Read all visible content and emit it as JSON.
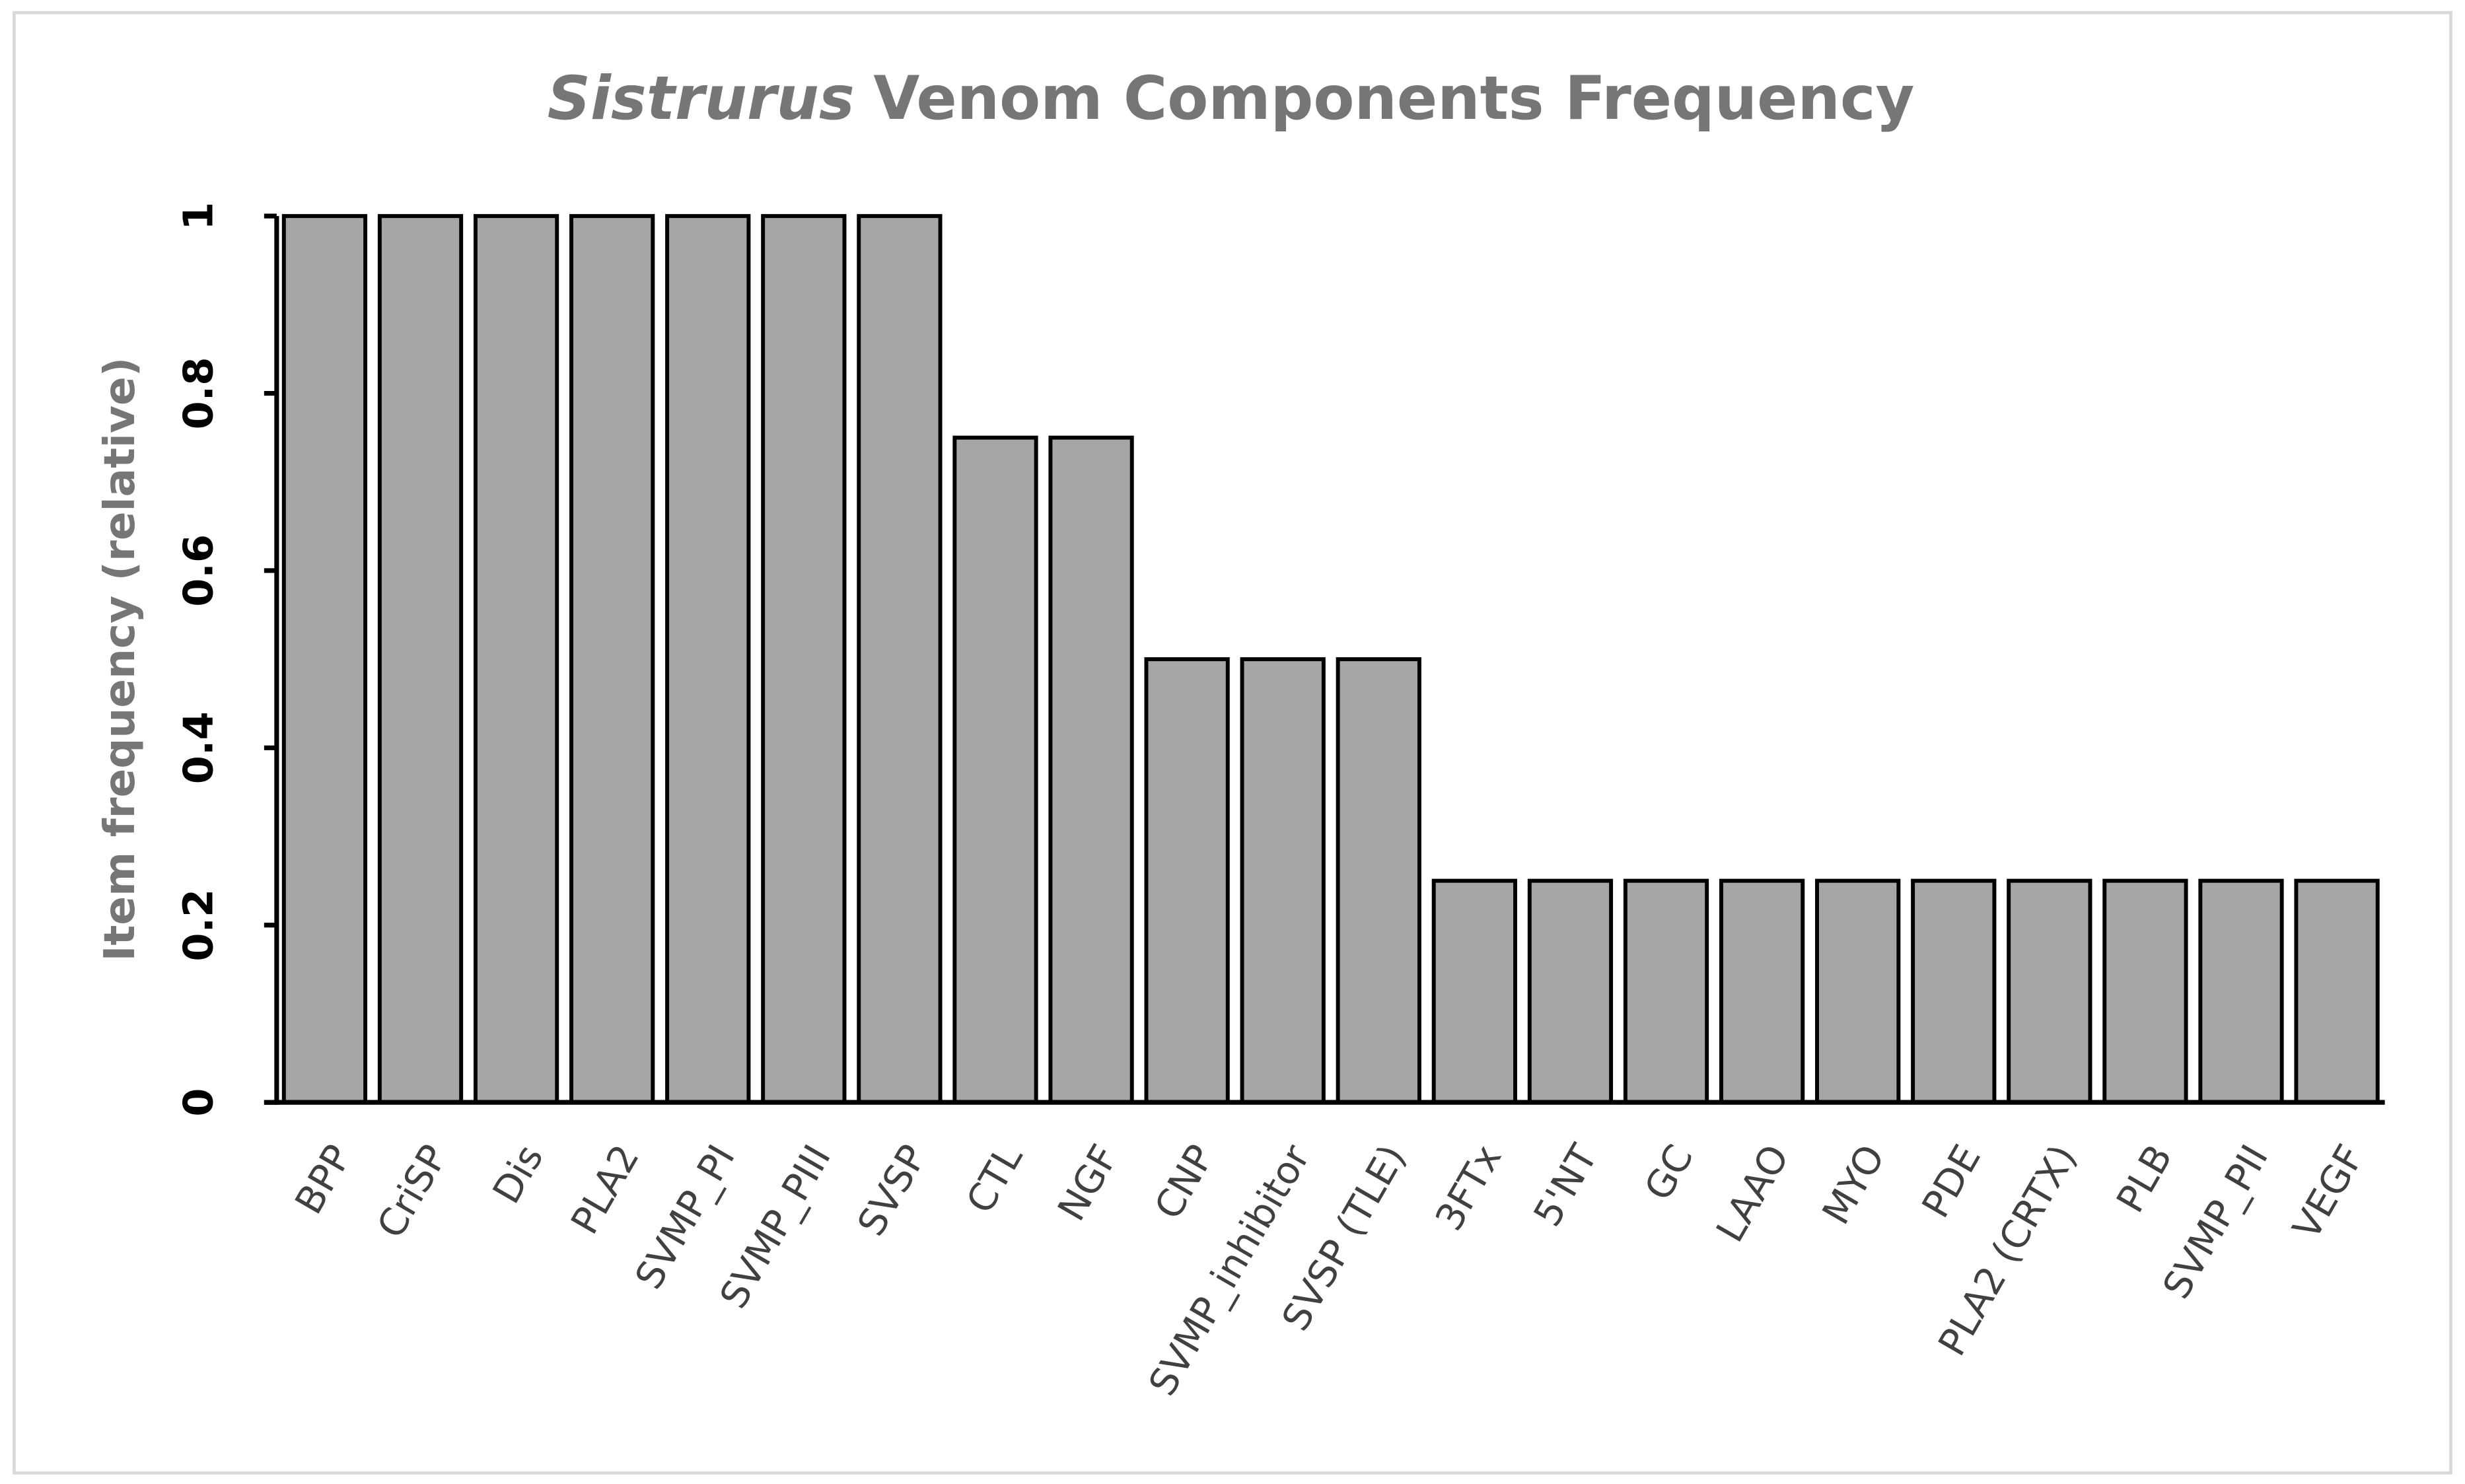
{
  "chart_data": {
    "type": "bar",
    "title": [
      "Sistrurus",
      "Venom Components Frequency"
    ],
    "y_label": "Item frequency (relative)",
    "categories": [
      "BPP",
      "CriSP",
      "Dis",
      "PLA2",
      "SVMP_PI",
      "SVMP_PIII",
      "SVSP",
      "CTL",
      "NGF",
      "CNP",
      "SVMP_inhibitor",
      "SVSP (TLE)",
      "3FTx",
      "5'NT",
      "GC",
      "LAAO",
      "MYO",
      "PDE",
      "PLA2 (CRTX)",
      "PLB",
      "SVMP_PII",
      "VEGF"
    ],
    "values": [
      1,
      1,
      1,
      1,
      1,
      1,
      1,
      0.75,
      0.75,
      0.5,
      0.5,
      0.5,
      0.25,
      0.25,
      0.25,
      0.25,
      0.25,
      0.25,
      0.25,
      0.25,
      0.25,
      0.25
    ],
    "color": "#a6a6a6",
    "ylim": [
      0,
      1
    ],
    "yticks": [
      0,
      0.2,
      0.4,
      0.6,
      0.8,
      1
    ],
    "grid": false
  }
}
